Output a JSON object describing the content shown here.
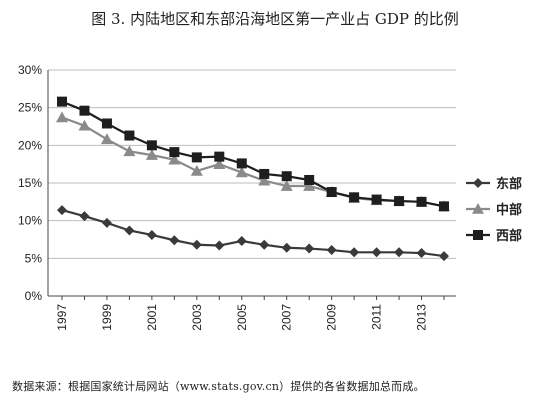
{
  "figure": {
    "title": "图 3. 内陆地区和东部沿海地区第一产业占 GDP 的比例",
    "source_note": "数据来源：根据国家统计局网站（www.stats.gov.cn）提供的各省数据加总而成。"
  },
  "chart_data": {
    "type": "line",
    "title": "图 3. 内陆地区和东部沿海地区第一产业占 GDP 的比例",
    "x": [
      1997,
      1998,
      1999,
      2000,
      2001,
      2002,
      2003,
      2004,
      2005,
      2006,
      2007,
      2008,
      2009,
      2010,
      2011,
      2012,
      2013,
      2014
    ],
    "x_tick_labels": [
      "1997",
      "1999",
      "2001",
      "2003",
      "2005",
      "2007",
      "2009",
      "2011",
      "2013"
    ],
    "y_tick_labels": [
      "0%",
      "5%",
      "10%",
      "15%",
      "20%",
      "25%",
      "30%"
    ],
    "ylim": [
      0,
      30
    ],
    "y_unit": "%",
    "grid": "horizontal",
    "legend_position": "right",
    "series": [
      {
        "name": "东部",
        "marker": "diamond",
        "color": "#3a3a3a",
        "values": [
          11.4,
          10.6,
          9.7,
          8.7,
          8.1,
          7.4,
          6.8,
          6.7,
          7.3,
          6.8,
          6.4,
          6.3,
          6.1,
          5.8,
          5.8,
          5.8,
          5.7,
          5.3
        ]
      },
      {
        "name": "中部",
        "marker": "triangle",
        "color": "#8a8a8a",
        "values": [
          23.7,
          22.6,
          20.8,
          19.2,
          18.7,
          18.1,
          16.6,
          17.5,
          16.4,
          15.3,
          14.6,
          14.6,
          13.8,
          13.0,
          12.7,
          12.6,
          12.5,
          11.9
        ]
      },
      {
        "name": "西部",
        "marker": "square",
        "color": "#1e1e1e",
        "values": [
          25.8,
          24.6,
          22.9,
          21.3,
          20.0,
          19.1,
          18.4,
          18.5,
          17.6,
          16.2,
          15.9,
          15.4,
          13.8,
          13.1,
          12.8,
          12.6,
          12.5,
          11.9
        ]
      }
    ]
  }
}
